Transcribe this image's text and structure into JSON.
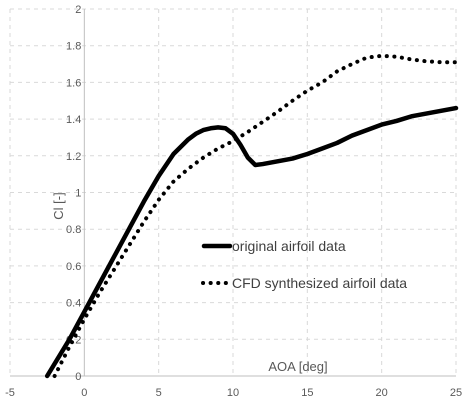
{
  "chart_data": {
    "type": "line",
    "title": "",
    "xlabel": "AOA [deg]",
    "ylabel": "Cl [-]",
    "xlim": [
      -5,
      25
    ],
    "ylim": [
      0,
      2
    ],
    "xticks": [
      -5,
      0,
      5,
      10,
      15,
      20,
      25
    ],
    "yticks": [
      0,
      0.2,
      0.4,
      0.6,
      0.8,
      1,
      1.2,
      1.4,
      1.6,
      1.8,
      2
    ],
    "xtick_labels": [
      "-5",
      "0",
      "5",
      "10",
      "15",
      "20",
      "25"
    ],
    "ytick_labels": [
      "0",
      "0.2",
      "0.4",
      "0.6",
      "0.8",
      "1",
      "1.2",
      "1.4",
      "1.6",
      "1.8",
      "2"
    ],
    "grid": true,
    "legend_position": "center-right",
    "series": [
      {
        "name": "original airfoil data",
        "style": "solid",
        "color": "#000000",
        "x": [
          -2.5,
          -1,
          0,
          1,
          2,
          3,
          4,
          5,
          6,
          7,
          7.5,
          8,
          8.5,
          9,
          9.5,
          10,
          10.5,
          11,
          11.5,
          12,
          13,
          14,
          15,
          16,
          17,
          18,
          19,
          20,
          21,
          22,
          23,
          24,
          25
        ],
        "y": [
          0.0,
          0.2,
          0.35,
          0.5,
          0.65,
          0.8,
          0.95,
          1.09,
          1.21,
          1.29,
          1.32,
          1.34,
          1.35,
          1.355,
          1.35,
          1.32,
          1.26,
          1.19,
          1.15,
          1.155,
          1.17,
          1.185,
          1.21,
          1.24,
          1.27,
          1.31,
          1.34,
          1.37,
          1.39,
          1.415,
          1.43,
          1.445,
          1.46
        ]
      },
      {
        "name": "CFD synthesized airfoil data",
        "style": "dotted",
        "color": "#000000",
        "x": [
          -2,
          -1,
          0,
          1,
          2,
          3,
          4,
          5,
          6,
          7,
          8,
          9,
          10,
          11,
          12,
          13,
          14,
          15,
          16,
          17,
          18,
          19,
          20,
          21,
          22,
          23,
          24,
          25
        ],
        "y": [
          0.0,
          0.16,
          0.31,
          0.45,
          0.58,
          0.71,
          0.84,
          0.96,
          1.06,
          1.13,
          1.19,
          1.24,
          1.28,
          1.33,
          1.385,
          1.44,
          1.5,
          1.555,
          1.6,
          1.66,
          1.7,
          1.735,
          1.745,
          1.74,
          1.725,
          1.715,
          1.71,
          1.71
        ]
      }
    ]
  }
}
